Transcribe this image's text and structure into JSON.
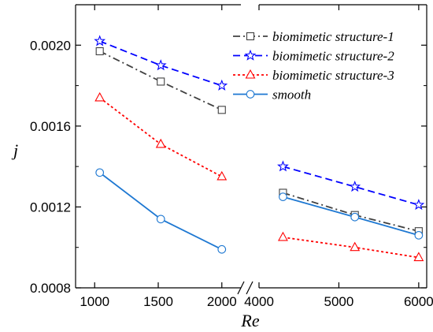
{
  "chart_data": {
    "type": "line",
    "title": "",
    "xlabel": "Re",
    "ylabel": "j",
    "ylim": [
      0.0008,
      0.0022
    ],
    "yticks": [
      0.0008,
      0.0012,
      0.0016,
      0.002
    ],
    "ytick_labels": [
      "0.0008",
      "0.0012",
      "0.0016",
      "0.0020"
    ],
    "x_axis_broken": true,
    "x_segments": [
      {
        "range": [
          850,
          2150
        ],
        "ticks": [
          1000,
          1500,
          2000
        ],
        "tick_labels": [
          "1000",
          "1500",
          "2000"
        ]
      },
      {
        "range": [
          4000,
          6100
        ],
        "ticks": [
          4000,
          5000,
          6000
        ],
        "tick_labels": [
          "4000",
          "5000",
          "6000"
        ]
      }
    ],
    "grid": false,
    "legend_position": "top-right",
    "series": [
      {
        "name": "biomimetic structure-1",
        "color": "#404040",
        "dash": "dash-dot",
        "marker": "square",
        "x": [
          1040,
          1520,
          2000,
          4300,
          5200,
          6000
        ],
        "y": [
          0.00197,
          0.00182,
          0.00168,
          0.00127,
          0.00116,
          0.00108
        ]
      },
      {
        "name": "biomimetic structure-2",
        "color": "#0000ff",
        "dash": "dash",
        "marker": "star",
        "x": [
          1040,
          1520,
          2000,
          4300,
          5200,
          6000
        ],
        "y": [
          0.00202,
          0.0019,
          0.0018,
          0.0014,
          0.0013,
          0.00121
        ]
      },
      {
        "name": "biomimetic structure-3",
        "color": "#ff0000",
        "dash": "dot",
        "marker": "triangle",
        "x": [
          1040,
          1520,
          2000,
          4300,
          5200,
          6000
        ],
        "y": [
          0.00174,
          0.00151,
          0.00135,
          0.00105,
          0.001,
          0.00095
        ]
      },
      {
        "name": "smooth",
        "color": "#1e78d2",
        "dash": "solid",
        "marker": "circle",
        "x": [
          1040,
          1520,
          2000,
          4300,
          5200,
          6000
        ],
        "y": [
          0.00137,
          0.00114,
          0.00099,
          0.00125,
          0.00115,
          0.00106
        ]
      }
    ]
  }
}
